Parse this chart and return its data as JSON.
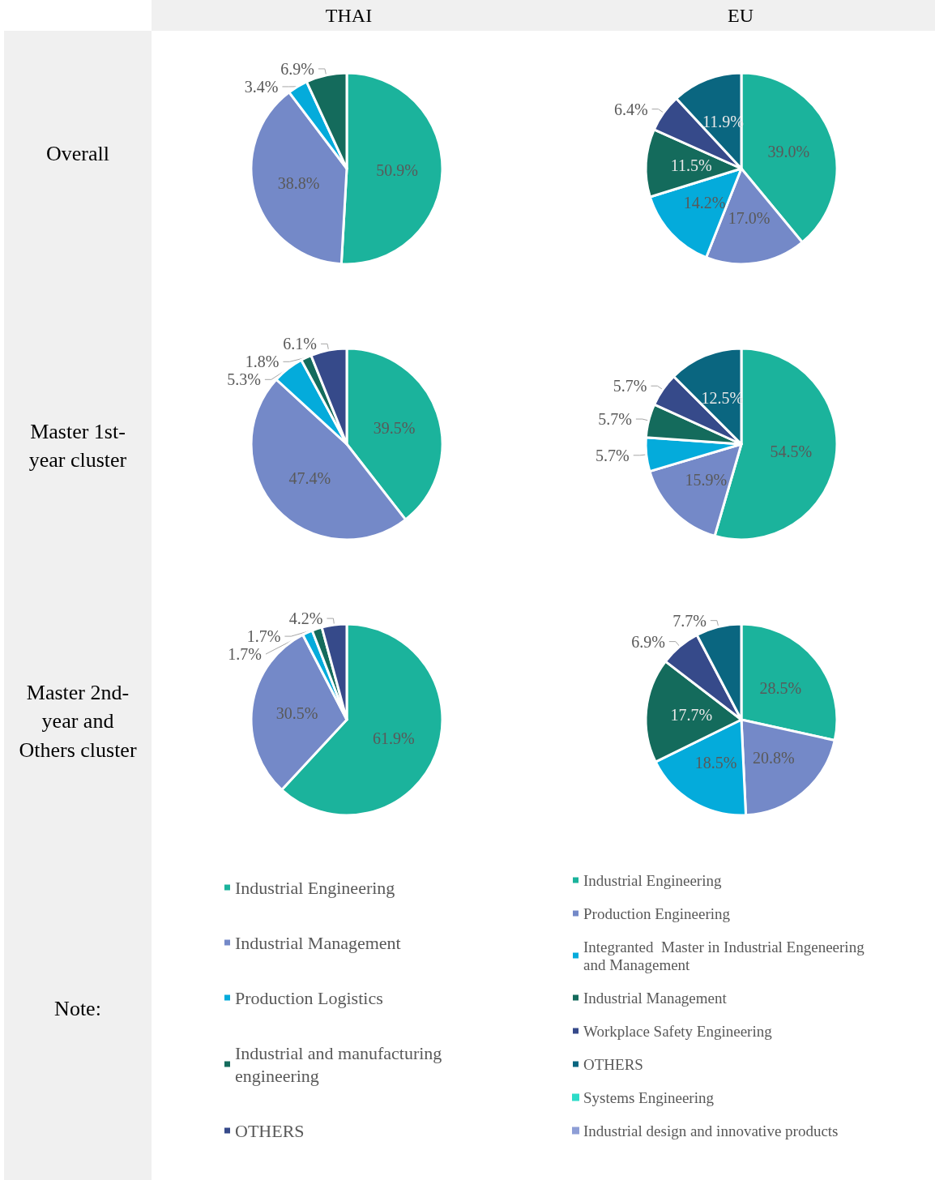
{
  "chart_data": [
    {
      "type": "other",
      "annotations": [
        "THAI",
        "EU",
        "Overall",
        "Master 1st-year cluster",
        "Master 2nd-year and Others cluster",
        "Note:"
      ]
    },
    {
      "type": "pie",
      "categories": [
        null,
        null,
        null,
        null,
        null
      ],
      "values": [
        50.9,
        38.8,
        3.4,
        6.9,
        null
      ],
      "value_labels": [
        "50.9%",
        "38.8%",
        "3.4%",
        "6.9%",
        null
      ],
      "colors": [
        "#1bb39c",
        "#7489c8",
        "#04abdb",
        "#146b5c",
        "#364a8a"
      ],
      "legend": false
    },
    {
      "type": "pie",
      "categories": [
        null,
        null,
        null,
        null,
        null,
        null,
        null,
        null
      ],
      "values": [
        39.0,
        17.0,
        14.2,
        11.5,
        6.4,
        11.9,
        null,
        null
      ],
      "value_labels": [
        "39.0%",
        "17.0%",
        "14.2%",
        "11.5%",
        "6.4%",
        "11.9%",
        null,
        null
      ],
      "colors": [
        "#1bb39c",
        "#7489c8",
        "#04abdb",
        "#146b5c",
        "#364a8a",
        "#0a6680",
        "#2ddcc8",
        "#8e9ed6"
      ],
      "legend": false
    },
    {
      "type": "pie",
      "categories": [
        null,
        null,
        null,
        null,
        null
      ],
      "values": [
        39.5,
        47.4,
        5.3,
        1.8,
        6.1
      ],
      "value_labels": [
        "39.5%",
        "47.4%",
        "5.3%",
        "1.8%",
        "6.1%"
      ],
      "colors": [
        "#1bb39c",
        "#7489c8",
        "#04abdb",
        "#146b5c",
        "#364a8a"
      ],
      "legend": false
    },
    {
      "type": "pie",
      "categories": [
        null,
        null,
        null,
        null,
        null,
        null,
        null,
        null
      ],
      "values": [
        54.5,
        15.9,
        5.7,
        5.7,
        5.7,
        12.5,
        null,
        null
      ],
      "value_labels": [
        "54.5%",
        "15.9%",
        "5.7%",
        "5.7%",
        "5.7%",
        "12.5%",
        null,
        null
      ],
      "colors": [
        "#1bb39c",
        "#7489c8",
        "#04abdb",
        "#146b5c",
        "#364a8a",
        "#0a6680",
        "#2ddcc8",
        "#8e9ed6"
      ],
      "legend": false
    },
    {
      "type": "pie",
      "categories": [
        "Industrial Engineering",
        "Industrial Management",
        "Production Logistics",
        "Industrial and manufacturing engineering",
        "OTHERS"
      ],
      "values": [
        61.9,
        30.5,
        1.7,
        1.7,
        4.2
      ],
      "value_labels": [
        "61.9%",
        "30.5%",
        "1.7%",
        "1.7%",
        "4.2%"
      ],
      "colors": [
        "#1bb39c",
        "#7489c8",
        "#04abdb",
        "#146b5c",
        "#364a8a"
      ],
      "legend": "bottom"
    },
    {
      "type": "pie",
      "categories": [
        "Industrial Engineering",
        "Production Engineering",
        "Integranted  Master in Industrial Engeneering and Management",
        "Industrial Management",
        "Workplace Safety Engineering",
        "OTHERS",
        "Systems Engineering",
        "Industrial design and innovative products"
      ],
      "values": [
        28.5,
        20.8,
        18.5,
        17.7,
        6.9,
        7.7,
        null,
        null
      ],
      "value_labels": [
        "28.5%",
        "20.8%",
        "18.5%",
        "17.7%",
        "6.9%",
        "7.7%",
        null,
        null
      ],
      "colors": [
        "#1bb39c",
        "#7489c8",
        "#04abdb",
        "#146b5c",
        "#364a8a",
        "#0a6680",
        "#2ddcc8",
        "#8e9ed6"
      ],
      "legend": "bottom"
    }
  ]
}
